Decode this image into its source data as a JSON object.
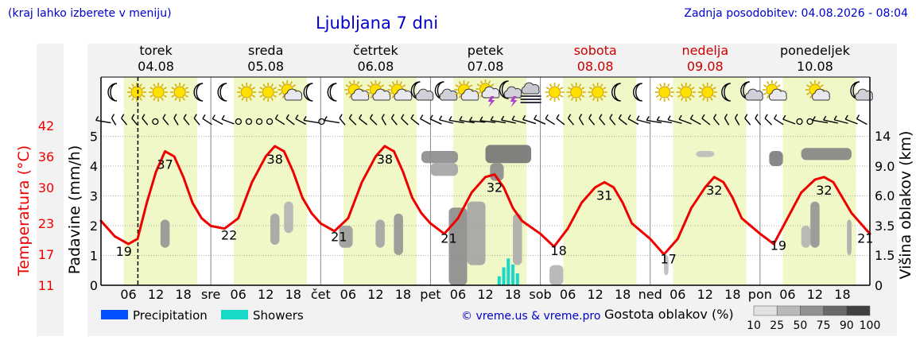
{
  "header": {
    "region_hint": "(kraj lahko izberete v meniju)",
    "title": "Ljubljana 7 dni",
    "updated": "Zadnja posodobitev: 04.08.2026 - 08:04"
  },
  "days": [
    {
      "name": "torek",
      "date": "04.08",
      "weekend": false,
      "short": "",
      "icons": [
        "moon-icon",
        "sun-icon",
        "sun-icon",
        "sun-icon",
        "moon-icon"
      ]
    },
    {
      "name": "sreda",
      "date": "05.08",
      "weekend": false,
      "short": "sre",
      "icons": [
        "moon-icon",
        "sun-icon",
        "sun-icon",
        "sun-cloud-icon",
        "moon-icon"
      ]
    },
    {
      "name": "četrtek",
      "date": "06.08",
      "weekend": false,
      "short": "čet",
      "icons": [
        "moon-icon",
        "sun-cloud-icon",
        "sun-cloud-icon",
        "sun-cloud-icon",
        "moon-cloud-icon"
      ]
    },
    {
      "name": "petek",
      "date": "07.08",
      "weekend": false,
      "short": "pet",
      "icons": [
        "moon-cloud-icon",
        "sun-cloud-icon",
        "thunder-icon",
        "moon-thunder-icon",
        "fog-icon"
      ]
    },
    {
      "name": "sobota",
      "date": "08.08",
      "weekend": true,
      "short": "sob",
      "icons": [
        "sun-icon",
        "sun-icon",
        "sun-icon",
        "moon-icon",
        "moon-icon"
      ]
    },
    {
      "name": "nedelja",
      "date": "09.08",
      "weekend": true,
      "short": "ned",
      "icons": [
        "sun-icon",
        "sun-icon",
        "sun-icon",
        "moon-icon",
        "moon-cloud-icon"
      ]
    },
    {
      "name": "ponedeljek",
      "date": "10.08",
      "weekend": false,
      "short": "pon",
      "icons": [
        "sun-cloud-icon",
        "sun-cloud-icon",
        "moon-cloud-icon"
      ]
    }
  ],
  "colors": {
    "temperature": "#ee0000",
    "daylight": "#f0f8c8",
    "night": "#ffffff",
    "precipitation": "#0050ff",
    "showers": "#18d8c8",
    "weekend_text": "#cc0000",
    "blue_text": "#0000cc"
  },
  "chart_data": {
    "type": "line",
    "x_unit": "hour",
    "x_start": "2026-08-04 00:00",
    "x_end": "2026-08-11 00:00",
    "x_tick_labels": [
      "06",
      "12",
      "18"
    ],
    "now": "2026-08-04 08:04",
    "temperature": {
      "ylabel": "Temperatura (°C)",
      "ticks": [
        11,
        17,
        23,
        30,
        36,
        42
      ],
      "ylim": [
        11,
        42
      ],
      "points": [
        [
          0,
          23.5
        ],
        [
          3,
          20.5
        ],
        [
          6,
          19
        ],
        [
          8,
          20
        ],
        [
          10,
          27
        ],
        [
          12,
          33
        ],
        [
          14,
          37
        ],
        [
          16,
          36
        ],
        [
          18,
          32
        ],
        [
          20,
          27
        ],
        [
          22,
          24
        ],
        [
          24,
          22.5
        ],
        [
          27,
          22
        ],
        [
          30,
          24
        ],
        [
          33,
          31
        ],
        [
          36,
          36
        ],
        [
          38,
          38
        ],
        [
          40,
          37
        ],
        [
          42,
          33
        ],
        [
          44,
          28
        ],
        [
          46,
          25
        ],
        [
          48,
          23
        ],
        [
          51,
          21.5
        ],
        [
          54,
          24
        ],
        [
          57,
          31
        ],
        [
          60,
          36
        ],
        [
          62,
          38
        ],
        [
          64,
          37
        ],
        [
          66,
          33
        ],
        [
          68,
          28
        ],
        [
          70,
          25
        ],
        [
          72,
          23
        ],
        [
          75,
          21
        ],
        [
          78,
          24
        ],
        [
          81,
          29
        ],
        [
          84,
          32
        ],
        [
          86,
          32.5
        ],
        [
          88,
          30
        ],
        [
          90,
          26
        ],
        [
          92,
          23.5
        ],
        [
          96,
          21
        ],
        [
          99,
          18.5
        ],
        [
          102,
          22
        ],
        [
          105,
          27
        ],
        [
          108,
          30
        ],
        [
          110,
          31
        ],
        [
          112,
          30
        ],
        [
          114,
          27
        ],
        [
          116,
          23
        ],
        [
          120,
          20
        ],
        [
          123,
          17
        ],
        [
          126,
          20
        ],
        [
          129,
          26
        ],
        [
          132,
          30
        ],
        [
          134,
          32
        ],
        [
          136,
          31
        ],
        [
          138,
          28
        ],
        [
          140,
          24
        ],
        [
          144,
          21
        ],
        [
          147,
          19
        ],
        [
          150,
          24
        ],
        [
          153,
          29
        ],
        [
          156,
          31.5
        ],
        [
          158,
          32
        ],
        [
          160,
          31
        ],
        [
          162,
          28
        ],
        [
          164,
          25
        ],
        [
          168,
          21
        ]
      ],
      "labels": [
        {
          "hour": 5,
          "value": "19"
        },
        {
          "hour": 14,
          "value": "37"
        },
        {
          "hour": 28,
          "value": "22"
        },
        {
          "hour": 38,
          "value": "38"
        },
        {
          "hour": 52,
          "value": "21"
        },
        {
          "hour": 62,
          "value": "38"
        },
        {
          "hour": 76,
          "value": "21"
        },
        {
          "hour": 86,
          "value": "32"
        },
        {
          "hour": 100,
          "value": "18"
        },
        {
          "hour": 110,
          "value": "31"
        },
        {
          "hour": 124,
          "value": "17"
        },
        {
          "hour": 134,
          "value": "32"
        },
        {
          "hour": 148,
          "value": "19"
        },
        {
          "hour": 158,
          "value": "32"
        },
        {
          "hour": 167,
          "value": "21"
        }
      ]
    },
    "precipitation": {
      "ylabel": "Padavine (mm/h)",
      "ticks": [
        0,
        1,
        2,
        3,
        4,
        5
      ],
      "ylim": [
        0,
        5
      ],
      "showers": [
        {
          "hour": 87,
          "value": 0.3
        },
        {
          "hour": 88,
          "value": 0.6
        },
        {
          "hour": 89,
          "value": 0.9
        },
        {
          "hour": 90,
          "value": 0.7
        },
        {
          "hour": 91,
          "value": 0.4
        }
      ]
    },
    "cloud_height": {
      "ylabel": "Višina oblakov (km)",
      "ticks": [
        "0",
        "1.5",
        "3.5",
        "6.0",
        "9.0",
        "14"
      ],
      "cloud_blobs": [
        {
          "h0": 13,
          "h1": 15,
          "k0": 2.0,
          "k1": 4.0,
          "density": 55
        },
        {
          "h0": 37,
          "h1": 39,
          "k0": 2.2,
          "k1": 4.5,
          "density": 45
        },
        {
          "h0": 40,
          "h1": 42,
          "k0": 3.0,
          "k1": 5.5,
          "density": 35
        },
        {
          "h0": 52,
          "h1": 55,
          "k0": 2.0,
          "k1": 3.5,
          "density": 50
        },
        {
          "h0": 60,
          "h1": 62,
          "k0": 2.0,
          "k1": 4.0,
          "density": 45
        },
        {
          "h0": 64,
          "h1": 66,
          "k0": 1.5,
          "k1": 4.5,
          "density": 55
        },
        {
          "h0": 70,
          "h1": 78,
          "k0": 9.5,
          "k1": 11.5,
          "density": 60
        },
        {
          "h0": 72,
          "h1": 78,
          "k0": 8.0,
          "k1": 9.5,
          "density": 45
        },
        {
          "h0": 76,
          "h1": 80,
          "k0": 0.0,
          "k1": 5.0,
          "density": 60
        },
        {
          "h0": 80,
          "h1": 84,
          "k0": 1.0,
          "k1": 5.5,
          "density": 45
        },
        {
          "h0": 84,
          "h1": 94,
          "k0": 9.5,
          "k1": 12.5,
          "density": 75
        },
        {
          "h0": 85,
          "h1": 88,
          "k0": 7.5,
          "k1": 9.5,
          "density": 60
        },
        {
          "h0": 90,
          "h1": 92,
          "k0": 1.0,
          "k1": 4.5,
          "density": 40
        },
        {
          "h0": 98,
          "h1": 101,
          "k0": 0.0,
          "k1": 1.0,
          "density": 35
        },
        {
          "h0": 123,
          "h1": 124,
          "k0": 0.5,
          "k1": 1.5,
          "density": 30
        },
        {
          "h0": 130,
          "h1": 134,
          "k0": 10.5,
          "k1": 11.5,
          "density": 30
        },
        {
          "h0": 146,
          "h1": 149,
          "k0": 9.0,
          "k1": 11.5,
          "density": 70
        },
        {
          "h0": 153,
          "h1": 164,
          "k0": 10.0,
          "k1": 12.0,
          "density": 65
        },
        {
          "h0": 153,
          "h1": 155,
          "k0": 2.0,
          "k1": 3.5,
          "density": 35
        },
        {
          "h0": 155,
          "h1": 157,
          "k0": 2.0,
          "k1": 5.5,
          "density": 55
        },
        {
          "h0": 163,
          "h1": 164,
          "k0": 1.5,
          "k1": 4.0,
          "density": 40
        }
      ]
    }
  },
  "legend": {
    "precipitation": "Precipitation",
    "showers": "Showers",
    "credit": "© vreme.us & vreme.pro",
    "cloud_density_title": "Gostota oblakov (%)",
    "cloud_density_steps": [
      "10",
      "25",
      "50",
      "75",
      "90",
      "100"
    ]
  }
}
